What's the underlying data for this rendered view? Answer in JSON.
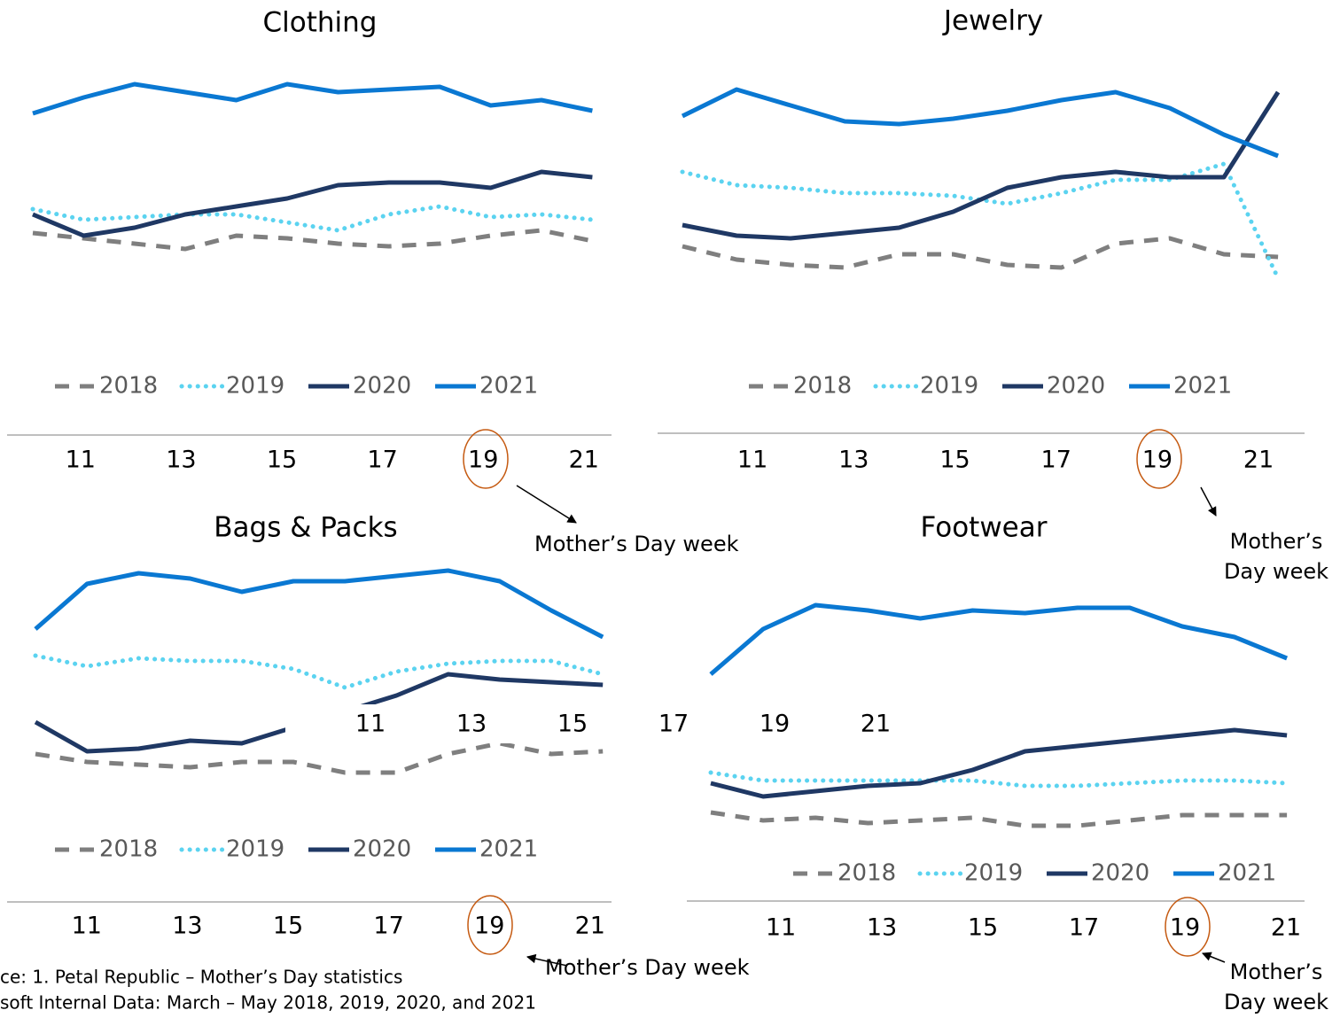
{
  "chart_data": [
    {
      "type": "line",
      "title": "Clothing",
      "categories": [
        null,
        "11",
        null,
        "13",
        null,
        "15",
        null,
        "17",
        null,
        "19",
        null,
        "21"
      ],
      "ylim": [
        0,
        110
      ],
      "legend": "bottom",
      "annotation_lines": [
        "Mother’s Day week"
      ],
      "series": [
        {
          "name": "2018",
          "color": "#7f7f7f",
          "style": "dashed",
          "values": [
            39,
            37,
            35,
            33,
            38,
            37,
            35,
            34,
            35,
            38,
            40,
            36
          ]
        },
        {
          "name": "2019",
          "color": "#5bd3f0",
          "style": "dotted",
          "values": [
            48,
            44,
            45,
            46,
            46,
            43,
            40,
            46,
            49,
            45,
            46,
            44
          ]
        },
        {
          "name": "2020",
          "color": "#1f3864",
          "style": "solid",
          "values": [
            46,
            38,
            41,
            46,
            49,
            52,
            57,
            58,
            58,
            56,
            62,
            60
          ]
        },
        {
          "name": "2021",
          "color": "#0a78d2",
          "style": "solid",
          "values": [
            84,
            90,
            95,
            92,
            89,
            95,
            92,
            93,
            94,
            87,
            89,
            85
          ]
        }
      ]
    },
    {
      "type": "line",
      "title": "Jewelry",
      "categories": [
        null,
        "11",
        null,
        "13",
        null,
        "15",
        null,
        "17",
        null,
        "19",
        null,
        "21"
      ],
      "ylim": [
        0,
        110
      ],
      "legend": "bottom",
      "annotation_lines": [
        "Mother’s",
        "Day week"
      ],
      "series": [
        {
          "name": "2018",
          "color": "#7f7f7f",
          "style": "dashed",
          "values": [
            34,
            29,
            27,
            26,
            31,
            31,
            27,
            26,
            35,
            37,
            31,
            30
          ]
        },
        {
          "name": "2019",
          "color": "#5bd3f0",
          "style": "dotted",
          "values": [
            62,
            57,
            56,
            54,
            54,
            53,
            50,
            54,
            59,
            59,
            65,
            22
          ]
        },
        {
          "name": "2020",
          "color": "#1f3864",
          "style": "solid",
          "values": [
            42,
            38,
            37,
            39,
            41,
            47,
            56,
            60,
            62,
            60,
            60,
            92
          ]
        },
        {
          "name": "2021",
          "color": "#0a78d2",
          "style": "solid",
          "values": [
            83,
            93,
            87,
            81,
            80,
            82,
            85,
            89,
            92,
            86,
            76,
            68
          ]
        }
      ]
    },
    {
      "type": "line",
      "title": "Bags & Packs",
      "categories": [
        null,
        "11",
        null,
        "13",
        null,
        "15",
        null,
        "17",
        null,
        "19",
        null,
        "21"
      ],
      "ylim": [
        0,
        110
      ],
      "legend": "bottom",
      "annotation_lines": [
        "Mother’s Day week"
      ],
      "series": [
        {
          "name": "2018",
          "color": "#7f7f7f",
          "style": "dashed",
          "values": [
            33,
            30,
            29,
            28,
            30,
            30,
            26,
            26,
            33,
            37,
            33,
            34
          ]
        },
        {
          "name": "2019",
          "color": "#5bd3f0",
          "style": "dotted",
          "values": [
            70,
            66,
            69,
            68,
            68,
            65,
            58,
            64,
            67,
            68,
            68,
            63
          ]
        },
        {
          "name": "2020",
          "color": "#1f3864",
          "style": "solid",
          "values": [
            45,
            34,
            35,
            38,
            37,
            43,
            49,
            55,
            63,
            61,
            60,
            59
          ]
        },
        {
          "name": "2021",
          "color": "#0a78d2",
          "style": "solid",
          "values": [
            80,
            97,
            101,
            99,
            94,
            98,
            98,
            100,
            102,
            98,
            87,
            77
          ]
        }
      ]
    },
    {
      "type": "line",
      "title": "Footwear",
      "categories": [
        null,
        "11",
        null,
        "13",
        null,
        "15",
        null,
        "17",
        null,
        "19",
        null,
        "21"
      ],
      "ylim": [
        0,
        110
      ],
      "legend": "bottom",
      "annotation_lines": [
        "Mother’s",
        "Day week"
      ],
      "series": [
        {
          "name": "2018",
          "color": "#7f7f7f",
          "style": "dashed",
          "values": [
            11,
            8,
            9,
            7,
            8,
            9,
            6,
            6,
            8,
            10,
            10,
            10
          ]
        },
        {
          "name": "2019",
          "color": "#5bd3f0",
          "style": "dotted",
          "values": [
            26,
            23,
            23,
            23,
            23,
            23,
            21,
            21,
            22,
            23,
            23,
            22
          ]
        },
        {
          "name": "2020",
          "color": "#1f3864",
          "style": "solid",
          "values": [
            22,
            17,
            19,
            21,
            22,
            27,
            34,
            36,
            38,
            40,
            42,
            40
          ]
        },
        {
          "name": "2021",
          "color": "#0a78d2",
          "style": "solid",
          "values": [
            63,
            80,
            89,
            87,
            84,
            87,
            86,
            88,
            88,
            81,
            77,
            69
          ]
        }
      ]
    }
  ],
  "source_notes": [
    "ce: 1. Petal Republic – Mother’s Day statistics",
    "soft Internal Data: March – May 2018, 2019, 2020, and 2021"
  ]
}
